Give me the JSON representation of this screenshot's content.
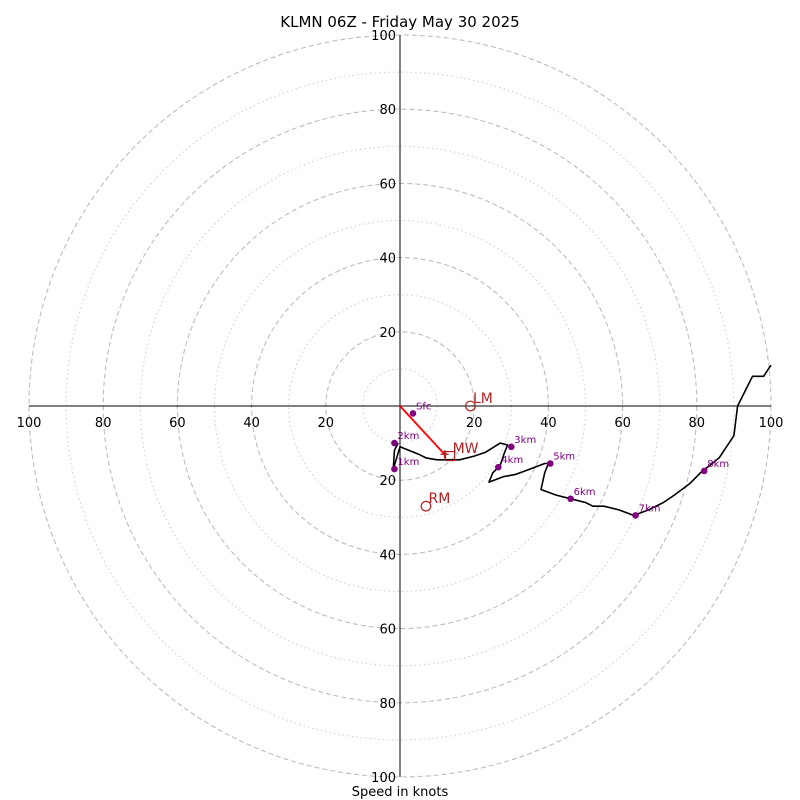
{
  "chart_data": {
    "type": "scatter",
    "subtype": "hodograph",
    "title": "KLMN 06Z - Friday May 30 2025",
    "xlabel": "Speed in knots",
    "xlim": [
      -100,
      100
    ],
    "ylim": [
      -100,
      100
    ],
    "major_rings": [
      20,
      40,
      60,
      80,
      100
    ],
    "minor_rings": [
      10,
      30,
      50,
      70,
      90
    ],
    "tick_values": [
      20,
      40,
      60,
      80,
      100
    ],
    "tick_labels": [
      "20",
      "40",
      "60",
      "80",
      "100"
    ],
    "grid": true,
    "colors": {
      "trace": "#000000",
      "height_marker": "#800080",
      "height_label": "#800080",
      "storm_motion": "#b22222",
      "shear_vector": "#ff0000",
      "major_ring": "#bdbdbd",
      "minor_ring": "#cccccc"
    },
    "series": [
      {
        "kind": "hodograph-trace",
        "u": [
          -0.5,
          -1.5,
          -1.8,
          0,
          5,
          7,
          10,
          13,
          16,
          20,
          23,
          27,
          29,
          28,
          27,
          25,
          24,
          28,
          31,
          35,
          39,
          40,
          39,
          38,
          42,
          46,
          50,
          52,
          55,
          59,
          63,
          67,
          71,
          74,
          78,
          81,
          86,
          90,
          91,
          92,
          95,
          98,
          100
        ],
        "v": [
          -10,
          -12,
          -17,
          -11,
          -13,
          -14,
          -14.5,
          -14.5,
          -14.5,
          -13.5,
          -12.5,
          -10,
          -10.5,
          -13,
          -16,
          -18,
          -20.5,
          -19,
          -18.5,
          -17,
          -15.5,
          -15.5,
          -18,
          -22.5,
          -24,
          -25,
          -26,
          -27,
          -27,
          -28,
          -29.5,
          -28,
          -26,
          -24,
          -21,
          -18,
          -14,
          -8,
          0,
          2,
          8,
          8,
          11
        ]
      },
      {
        "kind": "height-markers",
        "points": [
          {
            "label": "Sfc",
            "u": 3.5,
            "v": -2
          },
          {
            "label": "1km",
            "u": -1.5,
            "v": -17
          },
          {
            "label": "2km",
            "u": -1.5,
            "v": -10
          },
          {
            "label": "3km",
            "u": 30,
            "v": -11
          },
          {
            "label": "4km",
            "u": 26.5,
            "v": -16.5
          },
          {
            "label": "5km",
            "u": 40.5,
            "v": -15.5
          },
          {
            "label": "6km",
            "u": 46,
            "v": -25
          },
          {
            "label": "7km",
            "u": 63.5,
            "v": -29.5
          },
          {
            "label": "8km",
            "u": 82,
            "v": -17.5
          }
        ]
      },
      {
        "kind": "storm-motion",
        "points": [
          {
            "label": "LM",
            "u": 19,
            "v": 0
          },
          {
            "label": "MW",
            "u": 13.5,
            "v": -13.5
          },
          {
            "label": "RM",
            "u": 7,
            "v": -27
          }
        ]
      },
      {
        "kind": "shear-vector",
        "from": {
          "u": 0,
          "v": 0
        },
        "to": {
          "u": 12,
          "v": -13
        },
        "marker": "+"
      }
    ]
  }
}
